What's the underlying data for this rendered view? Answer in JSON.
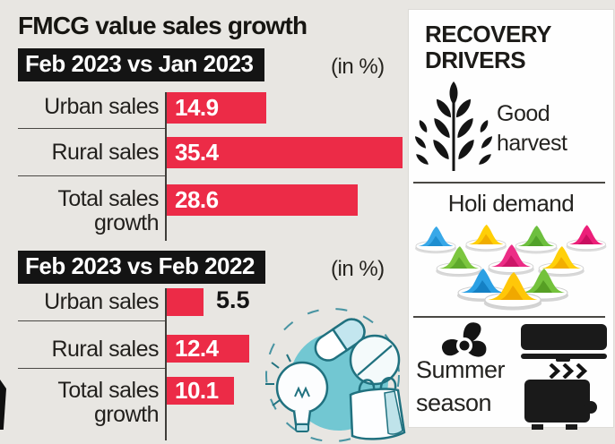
{
  "header": {
    "title": "FMCG value sales growth"
  },
  "colors": {
    "background": "#e8e6e2",
    "bar_red": "#ec2b47",
    "badge_black": "#141414",
    "panel_white": "#fefefe",
    "illustration_teal": "#72c7d2",
    "holi_blue": "#2ba0e4",
    "holi_yellow": "#ffc908",
    "holi_green": "#74c23c",
    "holi_magenta": "#ec1f79"
  },
  "sections": [
    {
      "badge": "Feb 2023 vs Jan 2023",
      "unit": "(in %)",
      "rows": [
        {
          "line1": "Urban sales",
          "line2": "",
          "value": "14.9"
        },
        {
          "line1": "Rural sales",
          "line2": "",
          "value": "35.4"
        },
        {
          "line1": "Total sales",
          "line2": "growth",
          "value": "28.6"
        }
      ]
    },
    {
      "badge": "Feb 2023 vs Feb 2022",
      "unit": "(in %)",
      "rows": [
        {
          "line1": "Urban sales",
          "line2": "",
          "value": "5.5"
        },
        {
          "line1": "Rural sales",
          "line2": "",
          "value": "12.4"
        },
        {
          "line1": "Total sales",
          "line2": "growth",
          "value": "10.1"
        }
      ]
    }
  ],
  "chart_data": [
    {
      "type": "bar",
      "orientation": "horizontal",
      "title": "Feb 2023 vs Jan 2023",
      "unit_label": "(in %)",
      "categories": [
        "Urban sales",
        "Rural sales",
        "Total sales growth"
      ],
      "values": [
        14.9,
        35.4,
        28.6
      ],
      "bar_color": "#ec2b47",
      "value_labels": [
        "14.9",
        "35.4",
        "28.6"
      ],
      "xlim": [
        0,
        36
      ],
      "grid": false,
      "legend": false
    },
    {
      "type": "bar",
      "orientation": "horizontal",
      "title": "Feb 2023 vs Feb 2022",
      "unit_label": "(in %)",
      "categories": [
        "Urban sales",
        "Rural sales",
        "Total sales growth"
      ],
      "values": [
        5.5,
        12.4,
        10.1
      ],
      "bar_color": "#ec2b47",
      "value_labels": [
        "5.5",
        "12.4",
        "10.1"
      ],
      "xlim": [
        0,
        36
      ],
      "grid": false,
      "legend": false
    }
  ],
  "recovery": {
    "title1": "RECOVERY",
    "title2": "DRIVERS",
    "good_harvest": {
      "line1": "Good",
      "line2": "harvest",
      "icon": "wheat-icon"
    },
    "holi": {
      "label": "Holi demand",
      "icon": "holi-powder-image"
    },
    "summer": {
      "line1": "Summer",
      "line2": "season",
      "icons": [
        "fan-icon",
        "ac-unit-icon",
        "airflow-arrows-icon",
        "air-cooler-icon"
      ]
    }
  }
}
